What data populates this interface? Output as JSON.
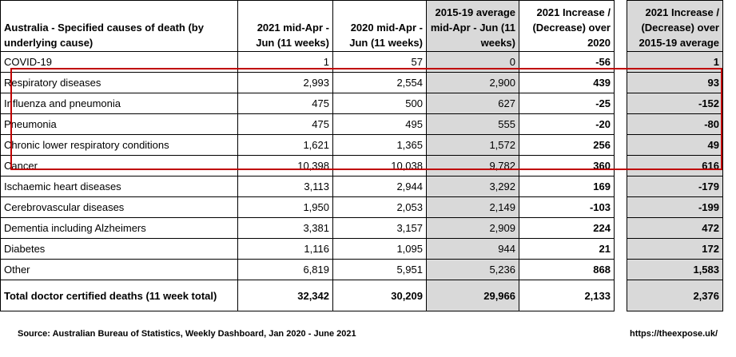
{
  "table": {
    "headers": {
      "label": "Australia - Specified causes of death (by underlying cause)",
      "col2021": "2021 mid-Apr - Jun (11 weeks)",
      "col2020": "2020 mid-Apr - Jun (11 weeks)",
      "colAvg": "2015-19 average mid-Apr - Jun (11 weeks)",
      "colInc2020": "2021 Increase / (Decrease) over 2020",
      "colIncAvg": "2021 Increase / (Decrease) over 2015-19 average"
    },
    "rows": [
      {
        "cause": "COVID-19",
        "y2021": "1",
        "y2020": "57",
        "avg": "0",
        "inc2020": "-56",
        "incAvg": "1"
      },
      {
        "cause": "Respiratory diseases",
        "y2021": "2,993",
        "y2020": "2,554",
        "avg": "2,900",
        "inc2020": "439",
        "incAvg": "93"
      },
      {
        "cause": "Influenza and pneumonia",
        "y2021": "475",
        "y2020": "500",
        "avg": "627",
        "inc2020": "-25",
        "incAvg": "-152"
      },
      {
        "cause": "Pneumonia",
        "y2021": "475",
        "y2020": "495",
        "avg": "555",
        "inc2020": "-20",
        "incAvg": "-80"
      },
      {
        "cause": "Chronic lower respiratory conditions",
        "y2021": "1,621",
        "y2020": "1,365",
        "avg": "1,572",
        "inc2020": "256",
        "incAvg": "49"
      },
      {
        "cause": "Cancer",
        "y2021": "10,398",
        "y2020": "10,038",
        "avg": "9,782",
        "inc2020": "360",
        "incAvg": "616"
      },
      {
        "cause": "Ischaemic heart diseases",
        "y2021": "3,113",
        "y2020": "2,944",
        "avg": "3,292",
        "inc2020": "169",
        "incAvg": "-179"
      },
      {
        "cause": "Cerebrovascular diseases",
        "y2021": "1,950",
        "y2020": "2,053",
        "avg": "2,149",
        "inc2020": "-103",
        "incAvg": "-199"
      },
      {
        "cause": "Dementia including Alzheimers",
        "y2021": "3,381",
        "y2020": "3,157",
        "avg": "2,909",
        "inc2020": "224",
        "incAvg": "472"
      },
      {
        "cause": "Diabetes",
        "y2021": "1,116",
        "y2020": "1,095",
        "avg": "944",
        "inc2020": "21",
        "incAvg": "172"
      },
      {
        "cause": "Other",
        "y2021": "6,819",
        "y2020": "5,951",
        "avg": "5,236",
        "inc2020": "868",
        "incAvg": "1,583"
      }
    ],
    "total": {
      "cause": "Total doctor certified deaths (11 week total)",
      "y2021": "32,342",
      "y2020": "30,209",
      "avg": "29,966",
      "inc2020": "2,133",
      "incAvg": "2,376"
    }
  },
  "footer": {
    "source": "Source: Australian Bureau of Statistics, Weekly Dashboard, Jan 2020 - June 2021",
    "site": "https://theexpose.uk/"
  },
  "colors": {
    "shade": "#d9d9d9",
    "highlight": "#c00000"
  }
}
